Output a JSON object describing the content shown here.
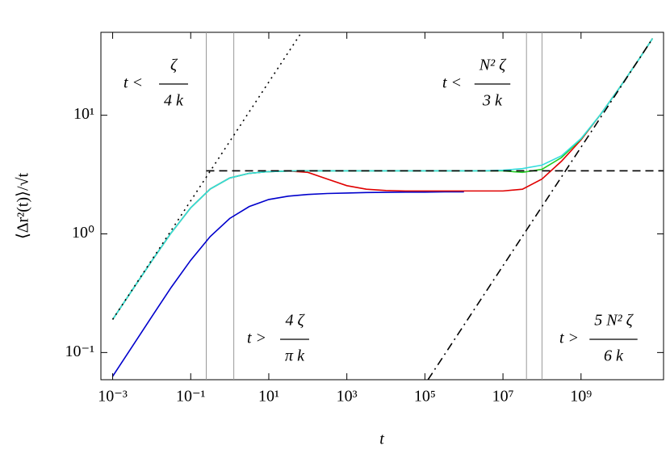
{
  "chart_data": {
    "type": "line",
    "x_label": "t",
    "y_label": "⟨Δr²(t)⟩/√t",
    "xscale": "log",
    "yscale": "log",
    "xlim": [
      0.0005,
      130000000000.0
    ],
    "ylim": [
      0.059,
      50
    ],
    "xticks": [
      {
        "value": 0.001,
        "label": "10⁻³"
      },
      {
        "value": 0.1,
        "label": "10⁻¹"
      },
      {
        "value": 10,
        "label": "10¹"
      },
      {
        "value": 1000,
        "label": "10³"
      },
      {
        "value": 100000,
        "label": "10⁵"
      },
      {
        "value": 10000000,
        "label": "10⁷"
      },
      {
        "value": 1000000000,
        "label": "10⁹"
      }
    ],
    "yticks": [
      {
        "value": 0.1,
        "label": "10⁻¹"
      },
      {
        "value": 1,
        "label": "10⁰"
      },
      {
        "value": 10,
        "label": "10¹"
      }
    ],
    "vlines": [
      0.25,
      1.27,
      40000000,
      100000000
    ],
    "reference_lines": [
      {
        "style": "dotted",
        "x": [
          0.001,
          69
        ],
        "values": [
          0.19,
          50
        ]
      },
      {
        "style": "dashed",
        "x": [
          0.25,
          130000000000.0
        ],
        "values": [
          3.4,
          3.4
        ]
      },
      {
        "style": "dashdot",
        "x": [
          120000,
          68000000000.0
        ],
        "values": [
          0.059,
          44.3
        ]
      }
    ],
    "series": [
      {
        "color": "#0000cc",
        "x": [
          0.001,
          0.00316,
          0.01,
          0.0316,
          0.1,
          0.316,
          1,
          3.16,
          10,
          31.6,
          100,
          316,
          1000,
          3160,
          10000.0,
          31600.0,
          100000.0,
          316000.0,
          1000000.0
        ],
        "values": [
          0.063,
          0.112,
          0.2,
          0.354,
          0.6,
          0.95,
          1.35,
          1.7,
          1.95,
          2.08,
          2.15,
          2.19,
          2.21,
          2.23,
          2.24,
          2.25,
          2.25,
          2.26,
          2.26
        ]
      },
      {
        "color": "#e00000",
        "x": [
          0.001,
          0.00316,
          0.01,
          0.0316,
          0.1,
          0.316,
          1,
          3.16,
          10,
          31.6,
          100,
          316,
          1000,
          3160,
          10000.0,
          31600.0,
          100000.0,
          316000.0,
          1000000.0,
          3160000.0,
          10000000.0,
          31600000.0,
          100000000.0,
          316000000.0,
          1000000000.0,
          3160000000.0,
          10000000000.0,
          31600000000.0,
          68000000000.0
        ],
        "values": [
          0.19,
          0.335,
          0.59,
          1.02,
          1.66,
          2.39,
          2.96,
          3.24,
          3.35,
          3.39,
          3.3,
          2.9,
          2.55,
          2.38,
          2.32,
          2.3,
          2.3,
          2.3,
          2.3,
          2.3,
          2.3,
          2.38,
          2.9,
          4.1,
          6.2,
          10.15,
          17.3,
          30.2,
          44.4
        ]
      },
      {
        "color": "#22cc22",
        "x": [
          0.001,
          0.00316,
          0.01,
          0.0316,
          0.1,
          0.316,
          1,
          3.16,
          10,
          31.6,
          100,
          316,
          1000,
          3160,
          10000.0,
          31600.0,
          100000.0,
          316000.0,
          1000000.0,
          3160000.0,
          10000000.0,
          31600000.0,
          100000000.0,
          316000000.0,
          1000000000.0,
          3160000000.0,
          10000000000.0,
          31600000000.0,
          68000000000.0
        ],
        "values": [
          0.19,
          0.335,
          0.59,
          1.02,
          1.66,
          2.39,
          2.96,
          3.24,
          3.35,
          3.39,
          3.4,
          3.4,
          3.4,
          3.4,
          3.4,
          3.4,
          3.4,
          3.4,
          3.4,
          3.4,
          3.4,
          3.3,
          3.5,
          4.4,
          6.3,
          10.15,
          17.3,
          30.2,
          44.4
        ]
      },
      {
        "color": "#33dddd",
        "x": [
          0.001,
          0.00316,
          0.01,
          0.0316,
          0.1,
          0.316,
          1,
          3.16,
          10,
          31.6,
          100,
          316,
          1000,
          3160,
          10000.0,
          31600.0,
          100000.0,
          316000.0,
          1000000.0,
          3160000.0,
          10000000.0,
          31600000.0,
          100000000.0,
          316000000.0,
          1000000000.0,
          3160000000.0,
          10000000000.0,
          31600000000.0,
          68000000000.0
        ],
        "values": [
          0.19,
          0.335,
          0.59,
          1.02,
          1.66,
          2.39,
          2.96,
          3.24,
          3.35,
          3.39,
          3.4,
          3.4,
          3.4,
          3.4,
          3.4,
          3.4,
          3.4,
          3.4,
          3.4,
          3.4,
          3.44,
          3.55,
          3.8,
          4.55,
          6.36,
          10.15,
          17.3,
          30.2,
          44.4
        ]
      }
    ],
    "annotations": [
      {
        "lhs": "t <",
        "numerator": "ζ",
        "denominator": "4 k"
      },
      {
        "lhs": "t >",
        "numerator": "4 ζ",
        "denominator": "π k"
      },
      {
        "lhs": "t <",
        "numerator": "N² ζ",
        "denominator": "3 k"
      },
      {
        "lhs": "t >",
        "numerator": "5 N² ζ",
        "denominator": "6 k"
      }
    ]
  }
}
